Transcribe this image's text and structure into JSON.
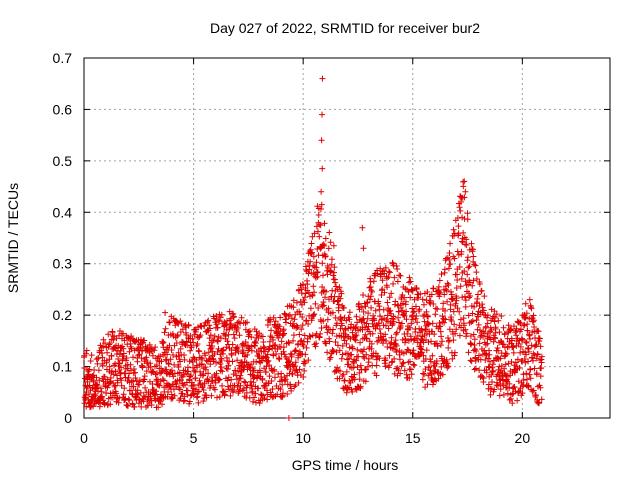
{
  "chart_data": {
    "type": "scatter",
    "title": "Day 027 of 2022, SRMTID for receiver bur2",
    "xlabel": "GPS time / hours",
    "ylabel": "SRMTID / TECUs",
    "xlim": [
      0,
      24
    ],
    "ylim": [
      0,
      0.7
    ],
    "xticks": [
      "0",
      "5",
      "10",
      "15",
      "20"
    ],
    "xtick_values": [
      0,
      5,
      10,
      15,
      20
    ],
    "yticks": [
      "0",
      "0.1",
      "0.2",
      "0.3",
      "0.4",
      "0.5",
      "0.6",
      "0.7"
    ],
    "ytick_values": [
      0,
      0.1,
      0.2,
      0.3,
      0.4,
      0.5,
      0.6,
      0.7
    ],
    "grid": true,
    "marker": "+",
    "series_color": "#e00000",
    "series": [
      {
        "name": "bur2",
        "trend_x": [
          0,
          0.5,
          1,
          1.5,
          2,
          2.5,
          3,
          3.5,
          3.7,
          4,
          4.5,
          5,
          5.5,
          6,
          6.5,
          7,
          7.5,
          8,
          8.5,
          9,
          9.5,
          10,
          10.3,
          10.6,
          10.9,
          11.2,
          11.5,
          12,
          12.5,
          13,
          13.5,
          14,
          14.5,
          15,
          15.5,
          16,
          16.5,
          17,
          17.3,
          17.6,
          18,
          18.5,
          19,
          19.5,
          20,
          20.3,
          20.6,
          20.9
        ],
        "trend_y": [
          0.07,
          0.065,
          0.09,
          0.1,
          0.09,
          0.085,
          0.08,
          0.07,
          0.1,
          0.12,
          0.11,
          0.1,
          0.11,
          0.12,
          0.13,
          0.12,
          0.11,
          0.1,
          0.12,
          0.12,
          0.14,
          0.18,
          0.24,
          0.28,
          0.28,
          0.24,
          0.18,
          0.12,
          0.14,
          0.17,
          0.19,
          0.2,
          0.18,
          0.17,
          0.15,
          0.16,
          0.2,
          0.26,
          0.32,
          0.24,
          0.17,
          0.13,
          0.12,
          0.1,
          0.12,
          0.15,
          0.12,
          0.08
        ],
        "spikes": [
          {
            "x": 10.88,
            "y": 0.66
          },
          {
            "x": 10.86,
            "y": 0.59
          },
          {
            "x": 10.84,
            "y": 0.54
          },
          {
            "x": 10.87,
            "y": 0.485
          },
          {
            "x": 10.82,
            "y": 0.44
          },
          {
            "x": 10.85,
            "y": 0.415
          },
          {
            "x": 10.8,
            "y": 0.375
          },
          {
            "x": 17.35,
            "y": 0.46
          },
          {
            "x": 17.4,
            "y": 0.44
          },
          {
            "x": 17.2,
            "y": 0.42
          },
          {
            "x": 17.25,
            "y": 0.39
          },
          {
            "x": 17.3,
            "y": 0.36
          },
          {
            "x": 12.7,
            "y": 0.37
          },
          {
            "x": 12.75,
            "y": 0.33
          },
          {
            "x": 14.1,
            "y": 0.3
          },
          {
            "x": 11.4,
            "y": 0.335
          },
          {
            "x": 3.7,
            "y": 0.205
          },
          {
            "x": 9.35,
            "y": 0.0
          }
        ]
      }
    ]
  }
}
